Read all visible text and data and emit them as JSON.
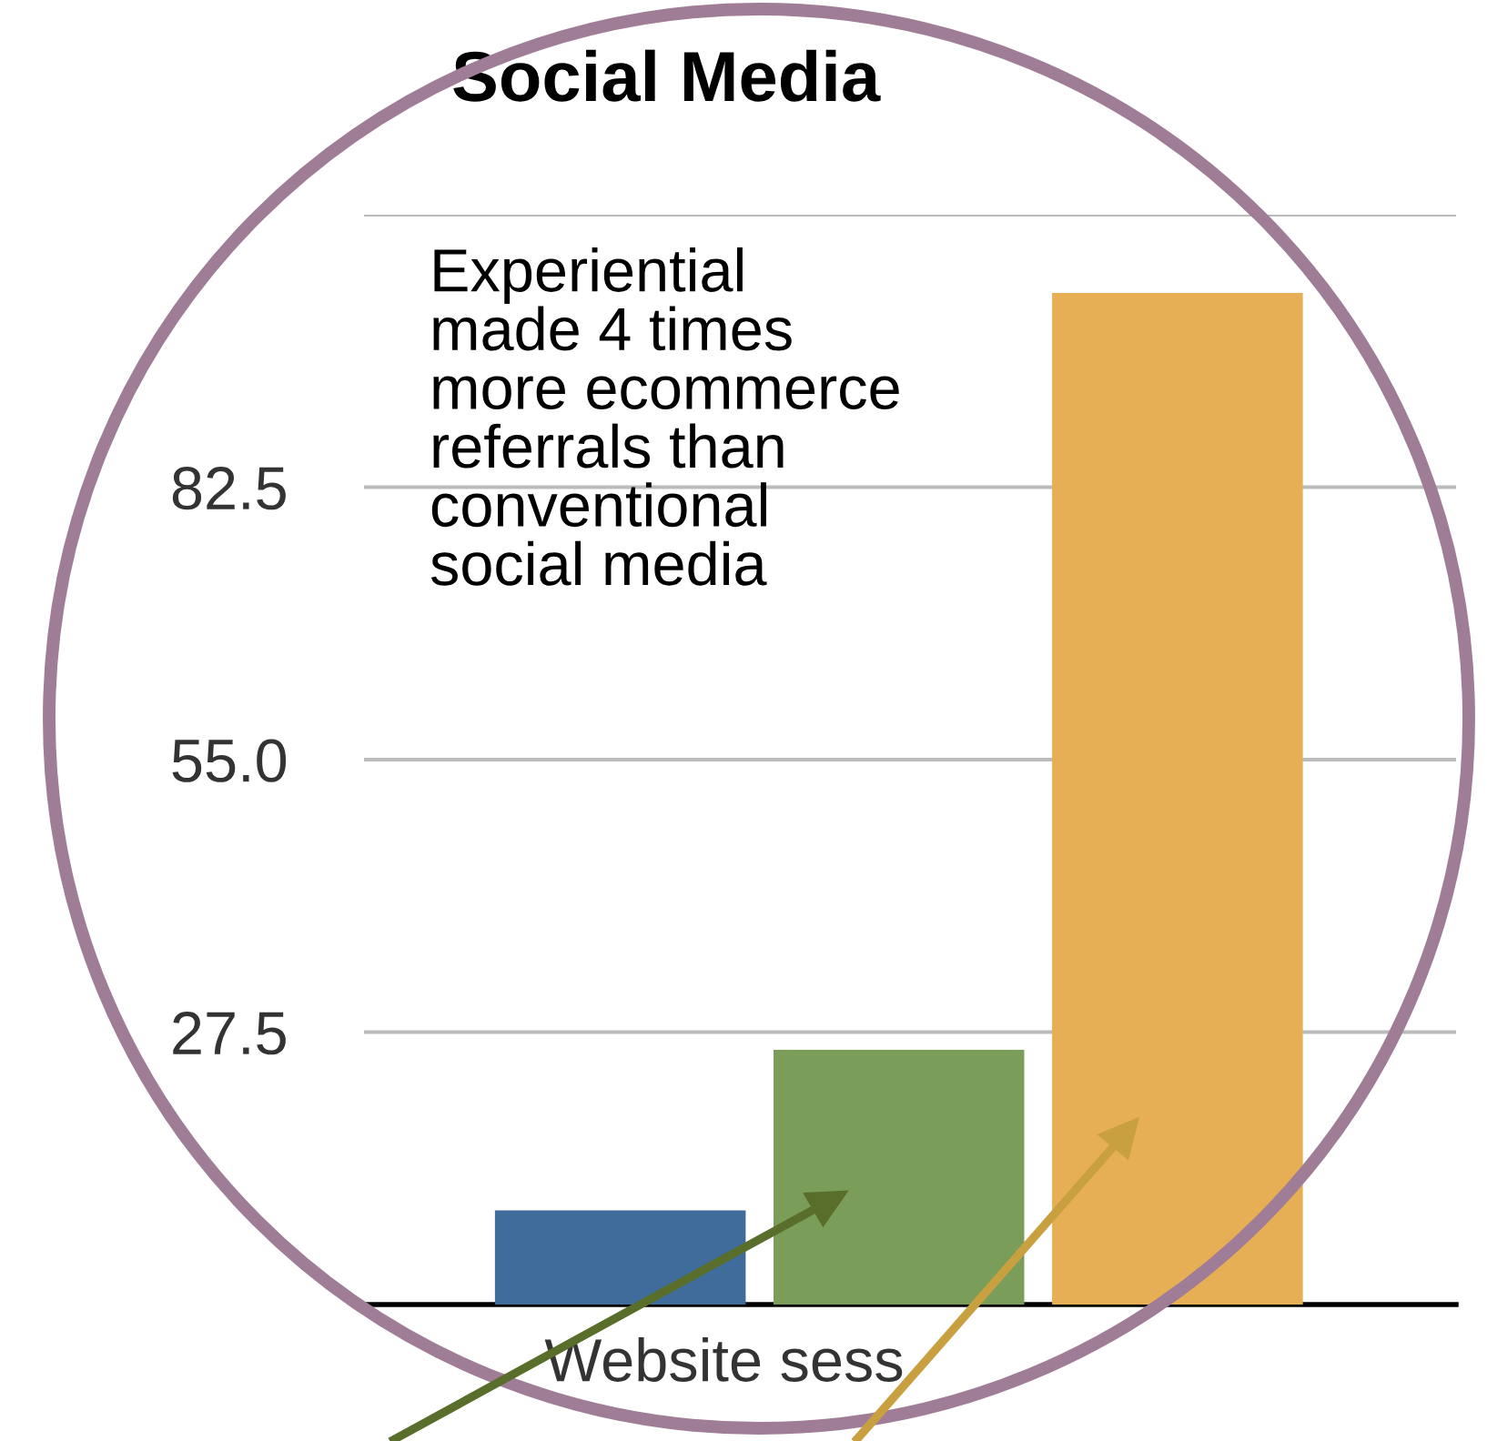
{
  "chart_data": {
    "type": "bar",
    "title": "Social Media",
    "xlabel": "Website sess",
    "categories": [
      null,
      null,
      null
    ],
    "values": [
      9.5,
      25.7,
      102.1
    ],
    "colors": [
      "#3f6c9a",
      "#7a9d5a",
      "#e6ae55"
    ],
    "ylim": [
      0,
      110
    ],
    "yticks": [
      {
        "value": 27.5,
        "label": "27.5"
      },
      {
        "value": 55.0,
        "label": "55.0"
      },
      {
        "value": 82.5,
        "label": "82.5"
      },
      {
        "value": 110,
        "label": null
      }
    ],
    "grid": "y",
    "annotations": [
      "Experiential\nmade 4 times\nmore ecommerce\nreferrals than\nconventional\nsocial media"
    ]
  }
}
